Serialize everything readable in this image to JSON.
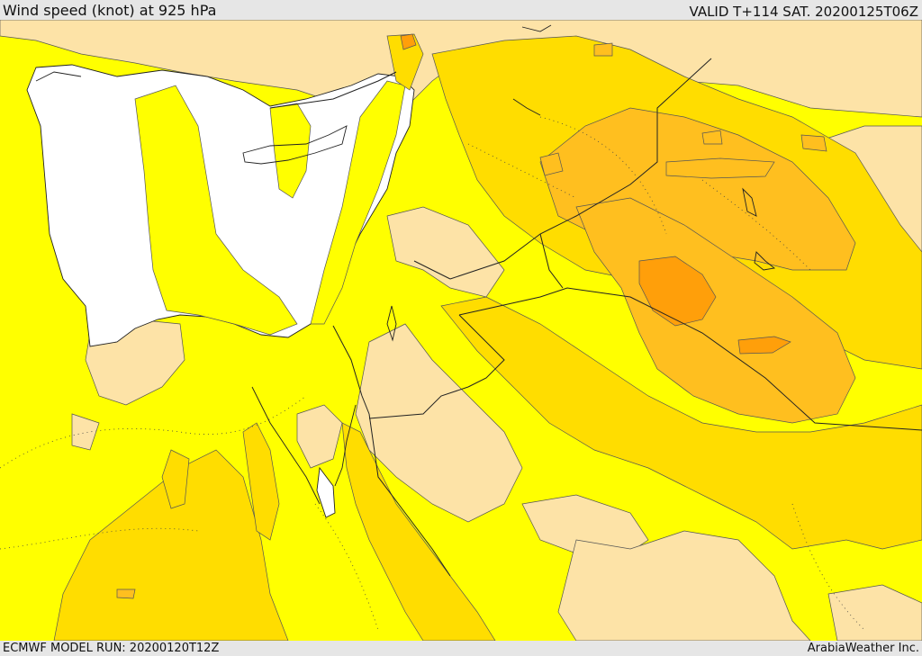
{
  "header": {
    "title": "Wind speed (knot) at 925 hPa",
    "valid": "VALID T+114 SAT. 20200125T06Z"
  },
  "footer": {
    "model_run": "ECMWF MODEL RUN: 20200120T12Z",
    "credit": "ArabiaWeather Inc."
  },
  "colors": {
    "sea": "#ffffff",
    "wind_low": "#fde3a7",
    "wind_mid": "#ffff00",
    "wind_high": "#ffdd00",
    "wind_higher": "#ffbf1f",
    "wind_highest": "#ff9f0a",
    "coast": "#222222"
  }
}
